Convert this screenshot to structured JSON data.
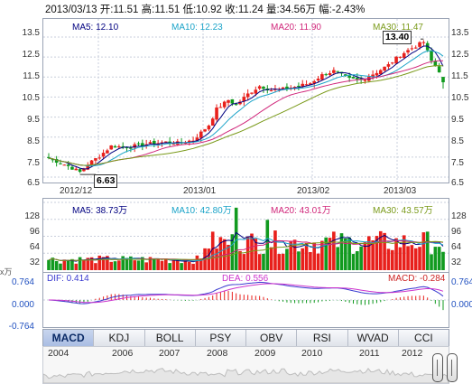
{
  "header": {
    "date": "2013/03/13",
    "open_label": "开:",
    "open": "11.51",
    "high_label": "高:",
    "high": "11.51",
    "low_label": "低:",
    "low": "10.92",
    "close_label": "收:",
    "close": "11.24",
    "volume_label": "量:",
    "volume": "34.56万",
    "change_label": "幅:",
    "change": "-2.43%"
  },
  "price_panel": {
    "legend": [
      {
        "label": "MA5: 12.10",
        "color": "#000080"
      },
      {
        "label": "MA10: 12.23",
        "color": "#1aa3c8"
      },
      {
        "label": "MA20: 11.90",
        "color": "#d0267a"
      },
      {
        "label": "MA30: 11.47",
        "color": "#7a9a1a"
      }
    ],
    "y_ticks": [
      "13.5",
      "12.5",
      "11.5",
      "10.5",
      "9.5",
      "8.5",
      "7.5",
      "6.5"
    ],
    "y_ticks_right": [
      "13.5",
      "12.5",
      "11.5",
      "10.5",
      "9.5",
      "8.5",
      "7.5",
      "6.5"
    ],
    "x_ticks": [
      "2012/12",
      "2013/01",
      "2013/02",
      "2013/03"
    ],
    "max_callout": "13.40",
    "min_callout": "6.63"
  },
  "volume_panel": {
    "legend": [
      {
        "label": "MA5: 38.73万",
        "color": "#000080"
      },
      {
        "label": "MA10: 42.80万",
        "color": "#1aa3c8"
      },
      {
        "label": "MA20: 43.01万",
        "color": "#d0267a"
      },
      {
        "label": "MA30: 43.57万",
        "color": "#7a9a1a"
      }
    ],
    "y_ticks": [
      "128",
      "96",
      "64",
      "32"
    ],
    "y_ticks_right": [
      "128",
      "96",
      "64",
      "32"
    ],
    "unit": "x万"
  },
  "macd_panel": {
    "dif_label": "DIF: 0.414",
    "dea_label": "DEA: 0.556",
    "macd_label": "MACD: -0.284",
    "y_ticks": [
      "0.764",
      "0.000",
      "-0.764"
    ],
    "y_ticks_right": [
      "0.764",
      "0.000",
      "-0.764"
    ]
  },
  "tabs": [
    "MACD",
    "KDJ",
    "BOLL",
    "PSY",
    "OBV",
    "RSI",
    "WVAD",
    "CCI"
  ],
  "active_tab": "MACD",
  "navigator": {
    "years": [
      "2004",
      "2006",
      "2007",
      "2008",
      "2009",
      "2010",
      "2011",
      "2012"
    ]
  },
  "colors": {
    "up": "#e8201c",
    "down": "#119a1f",
    "frame": "#9aa3b4",
    "grid": "#c9cfdc",
    "ma5": "#000080",
    "ma10": "#1aa3c8",
    "ma20": "#d0267a",
    "ma30": "#7a9a1a",
    "dif": "#3a3ad0",
    "dea": "#cc33cc"
  },
  "chart_data": {
    "type": "candlestick",
    "x_range": [
      "2012/11/27",
      "2013/03/13"
    ],
    "ylim": [
      6.5,
      13.5
    ],
    "anchors": [
      [
        0,
        7.45
      ],
      [
        5,
        7.05
      ],
      [
        8,
        6.75
      ],
      [
        10,
        7.15
      ],
      [
        13,
        7.55
      ],
      [
        16,
        8.05
      ],
      [
        20,
        8.0
      ],
      [
        25,
        8.15
      ],
      [
        30,
        8.25
      ],
      [
        33,
        8.2
      ],
      [
        37,
        8.35
      ],
      [
        41,
        9.1
      ],
      [
        43,
        9.9
      ],
      [
        46,
        10.35
      ],
      [
        48,
        10.1
      ],
      [
        51,
        10.65
      ],
      [
        54,
        11.05
      ],
      [
        57,
        10.85
      ],
      [
        60,
        10.9
      ],
      [
        64,
        11.05
      ],
      [
        67,
        11.2
      ],
      [
        70,
        11.6
      ],
      [
        73,
        11.8
      ],
      [
        77,
        11.4
      ],
      [
        80,
        11.35
      ],
      [
        84,
        11.75
      ],
      [
        87,
        12.1
      ],
      [
        90,
        12.6
      ],
      [
        93,
        12.95
      ],
      [
        96,
        13.25
      ],
      [
        98,
        12.3
      ],
      [
        100,
        11.8
      ],
      [
        101,
        11.24
      ]
    ],
    "max_price": 13.4,
    "min_price": 6.63,
    "volume_ylim": [
      0,
      128
    ],
    "macd_ylim": [
      -0.764,
      0.764
    ]
  }
}
